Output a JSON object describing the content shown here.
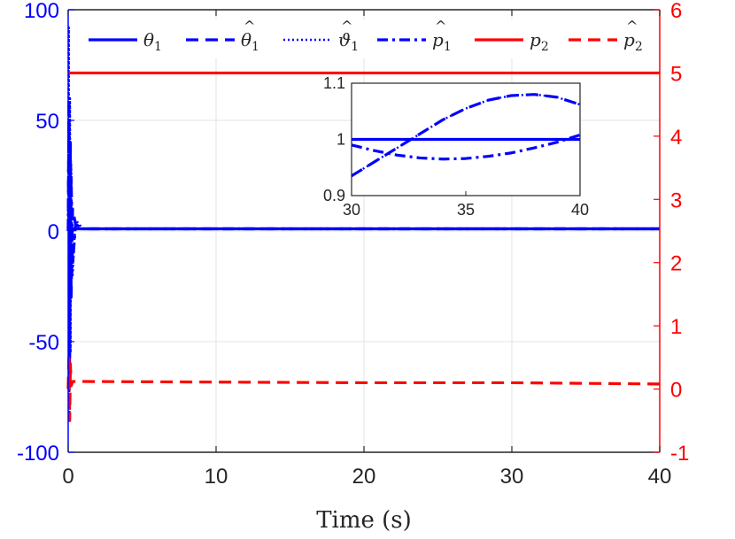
{
  "chart_data": {
    "type": "line",
    "xlabel": "Time (s)",
    "xlim": [
      0,
      40
    ],
    "x_ticks": [
      "0",
      "10",
      "20",
      "30",
      "40"
    ],
    "y_left": {
      "lim": [
        -100,
        100
      ],
      "ticks": [
        "-100",
        "-50",
        "0",
        "50",
        "100"
      ],
      "color": "#0000ff"
    },
    "y_right": {
      "lim": [
        -1,
        6
      ],
      "ticks": [
        "-1",
        "0",
        "1",
        "2",
        "3",
        "4",
        "5",
        "6"
      ],
      "color": "#ff0000"
    },
    "grid": true,
    "legend_position": "top",
    "series": [
      {
        "name": "θ1",
        "axis": "left",
        "color": "#0000ff",
        "style": "solid",
        "x": [
          0,
          0.2,
          0.5,
          1,
          10,
          20,
          30,
          40
        ],
        "y": [
          1,
          1,
          1,
          1,
          1,
          1,
          1,
          1
        ]
      },
      {
        "name": "θ̂1",
        "axis": "left",
        "color": "#0000ff",
        "style": "dashed",
        "x": [
          0,
          0.05,
          0.1,
          0.15,
          0.2,
          0.3,
          0.5,
          1,
          10,
          20,
          30,
          40
        ],
        "y": [
          0,
          60,
          -70,
          40,
          -30,
          10,
          3,
          1,
          1,
          1,
          1,
          1
        ]
      },
      {
        "name": "ϑ̂1",
        "axis": "left",
        "color": "#0000ff",
        "style": "dotted",
        "x": [
          0,
          0.04,
          0.08,
          0.12,
          0.16,
          0.2,
          0.3,
          0.5,
          1,
          10,
          20,
          30,
          40
        ],
        "y": [
          0,
          92,
          -85,
          60,
          -55,
          30,
          -20,
          5,
          1,
          1,
          1,
          1,
          1
        ]
      },
      {
        "name": "p̂1",
        "axis": "left",
        "color": "#0000ff",
        "style": "dashdot",
        "x": [
          0,
          0.05,
          0.1,
          0.2,
          0.3,
          0.5,
          1,
          10,
          20,
          30,
          40
        ],
        "y": [
          0,
          50,
          -50,
          25,
          -15,
          3,
          1,
          1,
          1,
          1,
          1
        ]
      },
      {
        "name": "p2",
        "axis": "right",
        "color": "#ff0000",
        "style": "solid",
        "x": [
          0,
          40
        ],
        "y": [
          5,
          5
        ]
      },
      {
        "name": "p̂2",
        "axis": "right",
        "color": "#ff0000",
        "style": "dashed",
        "x": [
          0,
          0.05,
          0.1,
          0.15,
          0.2,
          0.3,
          0.5,
          10,
          20,
          30,
          40
        ],
        "y": [
          0,
          0.55,
          -0.5,
          0.4,
          0.05,
          0.12,
          0.12,
          0.11,
          0.1,
          0.1,
          0.08
        ]
      }
    ],
    "legend": [
      {
        "label": "θ",
        "sub": "1",
        "hat": false,
        "color": "#0000ff",
        "style": "solid"
      },
      {
        "label": "θ",
        "sub": "1",
        "hat": true,
        "color": "#0000ff",
        "style": "dashed"
      },
      {
        "label": "ϑ",
        "sub": "1",
        "hat": true,
        "color": "#0000ff",
        "style": "dotted"
      },
      {
        "label": "p",
        "sub": "1",
        "hat": true,
        "color": "#0000ff",
        "style": "dashdot"
      },
      {
        "label": "p",
        "sub": "2",
        "hat": false,
        "color": "#ff0000",
        "style": "solid"
      },
      {
        "label": "p",
        "sub": "2",
        "hat": true,
        "color": "#ff0000",
        "style": "dashed"
      }
    ],
    "inset": {
      "xlim": [
        30,
        40
      ],
      "ylim": [
        0.9,
        1.1
      ],
      "x_ticks": [
        "30",
        "35",
        "40"
      ],
      "y_ticks": [
        "0.9",
        "1",
        "1.1"
      ],
      "series": [
        {
          "name": "θ1",
          "style": "solid",
          "color": "#0000ff",
          "x": [
            30,
            40
          ],
          "y": [
            1,
            1
          ]
        },
        {
          "name": "θ̂1",
          "style": "dashed",
          "color": "#0000ff",
          "x": [
            30,
            31,
            32,
            33,
            34,
            35,
            36,
            37,
            38,
            39,
            40
          ],
          "y": [
            0.935,
            0.96,
            0.985,
            1.01,
            1.035,
            1.055,
            1.07,
            1.078,
            1.08,
            1.075,
            1.062
          ]
        },
        {
          "name": "ϑ̂1",
          "style": "dotted",
          "color": "#0000ff",
          "x": [
            30,
            31,
            32,
            33,
            34,
            35,
            36,
            37,
            38,
            39,
            40
          ],
          "y": [
            0.935,
            0.96,
            0.985,
            1.01,
            1.035,
            1.055,
            1.07,
            1.078,
            1.08,
            1.075,
            1.062
          ]
        },
        {
          "name": "p̂1",
          "style": "dashdot",
          "color": "#0000ff",
          "x": [
            30,
            31,
            32,
            33,
            34,
            35,
            36,
            37,
            38,
            39,
            40
          ],
          "y": [
            0.99,
            0.98,
            0.972,
            0.967,
            0.965,
            0.966,
            0.97,
            0.976,
            0.985,
            0.995,
            1.008
          ]
        }
      ]
    }
  }
}
